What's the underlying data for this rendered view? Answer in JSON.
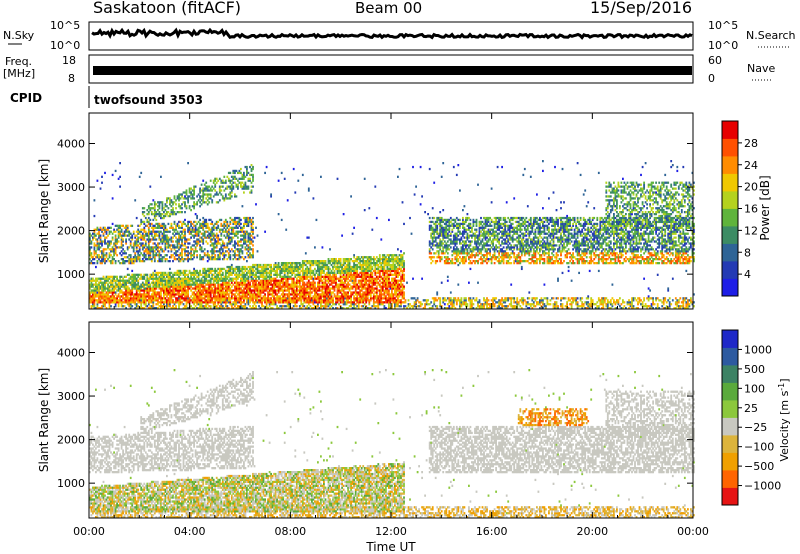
{
  "header": {
    "station": "Saskatoon (fitACF)",
    "beam": "Beam 00",
    "date": "15/Sep/2016"
  },
  "strips": {
    "nsky": {
      "label": "N.Sky",
      "ticks": [
        "10^5",
        "10^0"
      ]
    },
    "nsearch": {
      "label": "N.Search",
      "ticks": [
        "10^5",
        "10^0"
      ]
    },
    "freq": {
      "label_top": "Freq.",
      "label_unit": "[MHz]",
      "ticks": [
        "18",
        "8"
      ]
    },
    "nave": {
      "label": "Nave",
      "ticks": [
        "60",
        "0"
      ]
    },
    "cpid": {
      "label": "CPID",
      "value": "twofsound 3503"
    }
  },
  "colors": {
    "power": [
      "#1e1ee6",
      "#233ab4",
      "#2e6496",
      "#3c8c64",
      "#5fb43c",
      "#b4d21e",
      "#f0c800",
      "#ff8c00",
      "#ff5000",
      "#e60000"
    ],
    "velocity": [
      "#1e28c8",
      "#2d5aa0",
      "#3c8264",
      "#5aaa3c",
      "#8cc83c",
      "#c8c8c0",
      "#dcb43c",
      "#f0a000",
      "#ff6400",
      "#e61414"
    ]
  },
  "chart_data": [
    {
      "type": "heatmap",
      "title": "Power",
      "xlabel": "Time UT",
      "ylabel": "Slant Range [km]",
      "x_ticks": [
        "00:00",
        "04:00",
        "08:00",
        "12:00",
        "16:00",
        "20:00",
        "00:00"
      ],
      "xlim": [
        0,
        24
      ],
      "y_ticks": [
        1000,
        2000,
        3000,
        4000
      ],
      "ylim": [
        200,
        4700
      ],
      "colorbar": {
        "label": "Power [dB]",
        "ticks": [
          4,
          8,
          12,
          16,
          20,
          24,
          28
        ],
        "range": [
          0,
          32
        ]
      },
      "features": [
        {
          "t": [
            0,
            6.5
          ],
          "range_km": [
            1200,
            2100
          ],
          "level": "medium"
        },
        {
          "t": [
            2,
            5.5
          ],
          "range_km": [
            2000,
            2800
          ],
          "level": "medium"
        },
        {
          "t": [
            0,
            12.5
          ],
          "range_km": [
            300,
            1300
          ],
          "level": "strong"
        },
        {
          "t": [
            13.5,
            24
          ],
          "range_km": [
            1300,
            2300
          ],
          "level": "medium"
        },
        {
          "t": [
            20.5,
            24
          ],
          "range_km": [
            2000,
            3100
          ],
          "level": "medium"
        }
      ]
    },
    {
      "type": "heatmap",
      "title": "Velocity",
      "xlabel": "Time UT",
      "ylabel": "Slant Range [km]",
      "x_ticks": [
        "00:00",
        "04:00",
        "08:00",
        "12:00",
        "16:00",
        "20:00",
        "00:00"
      ],
      "xlim": [
        0,
        24
      ],
      "y_ticks": [
        1000,
        2000,
        3000,
        4000
      ],
      "ylim": [
        200,
        4700
      ],
      "colorbar": {
        "label": "Velocity [m s^-1]",
        "ticks": [
          "1000",
          "500",
          "100",
          "25",
          "−25",
          "−100",
          "−500",
          "−1000"
        ]
      },
      "features": [
        {
          "t": [
            0,
            6.5
          ],
          "range_km": [
            1200,
            2500
          ],
          "level": "ground-scatter"
        },
        {
          "t": [
            0,
            12.5
          ],
          "range_km": [
            300,
            1300
          ],
          "level": "mixed"
        },
        {
          "t": [
            13.5,
            24
          ],
          "range_km": [
            1300,
            2600
          ],
          "level": "ground-scatter"
        },
        {
          "t": [
            17,
            19.5
          ],
          "range_km": [
            2300,
            2700
          ],
          "level": "negative"
        }
      ]
    }
  ]
}
